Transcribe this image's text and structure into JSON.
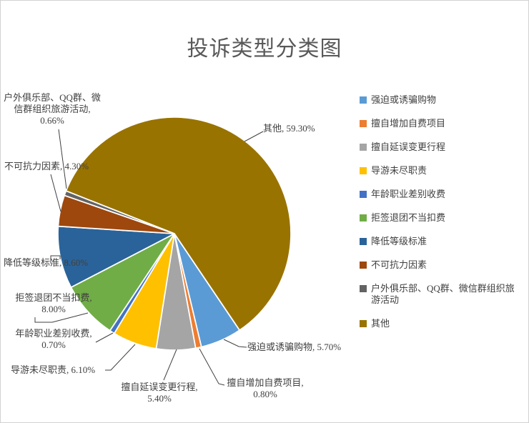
{
  "chart_data": {
    "type": "pie",
    "title": "投诉类型分类图",
    "legend_position": "right",
    "start_angle_deg": 146,
    "background": "#ffffff",
    "title_color": "#595959",
    "label_color": "#404040",
    "categories": [
      "强迫或诱骗购物",
      "擅自增加自费项目",
      "擅自延误变更行程",
      "导游未尽职责",
      "年龄职业差别收费",
      "拒签退团不当扣费",
      "降低等级标准",
      "不可抗力因素",
      "户外俱乐部、QQ群、微信群组织旅游活动",
      "其他"
    ],
    "values": [
      5.7,
      0.8,
      5.4,
      6.1,
      0.7,
      8.0,
      8.6,
      4.3,
      0.66,
      59.3
    ],
    "colors": [
      "#5B9BD5",
      "#ED7D31",
      "#A5A5A5",
      "#FFC000",
      "#4472C4",
      "#70AD47",
      "#2A6399",
      "#9E480E",
      "#636363",
      "#997300"
    ],
    "slices": [
      {
        "name": "强迫或诱骗购物",
        "value": 5.7,
        "label": "强迫或诱骗购物, 5.70%",
        "color": "#5B9BD5"
      },
      {
        "name": "擅自增加自费项目",
        "value": 0.8,
        "label": "擅自增加自费项目, 0.80%",
        "color": "#ED7D31"
      },
      {
        "name": "擅自延误变更行程",
        "value": 5.4,
        "label": "擅自延误变更行程, 5.40%",
        "color": "#A5A5A5"
      },
      {
        "name": "导游未尽职责",
        "value": 6.1,
        "label": "导游未尽职责, 6.10%",
        "color": "#FFC000"
      },
      {
        "name": "年龄职业差别收费",
        "value": 0.7,
        "label": "年龄职业差别收费, 0.70%",
        "color": "#4472C4"
      },
      {
        "name": "拒签退团不当扣费",
        "value": 8.0,
        "label": "拒签退团不当扣费, 8.00%",
        "color": "#70AD47"
      },
      {
        "name": "降低等级标准",
        "value": 8.6,
        "label": "降低等级标准, 8.60%",
        "color": "#2A6399"
      },
      {
        "name": "不可抗力因素",
        "value": 4.3,
        "label": "不可抗力因素, 4.30%",
        "color": "#9E480E"
      },
      {
        "name": "户外俱乐部、QQ群、微信群组织旅游活动",
        "value": 0.66,
        "label": "户外俱乐部、QQ群、微信群组织旅游活动, 0.66%",
        "color": "#636363"
      },
      {
        "name": "其他",
        "value": 59.3,
        "label": "其他, 59.30%",
        "color": "#997300"
      }
    ]
  }
}
